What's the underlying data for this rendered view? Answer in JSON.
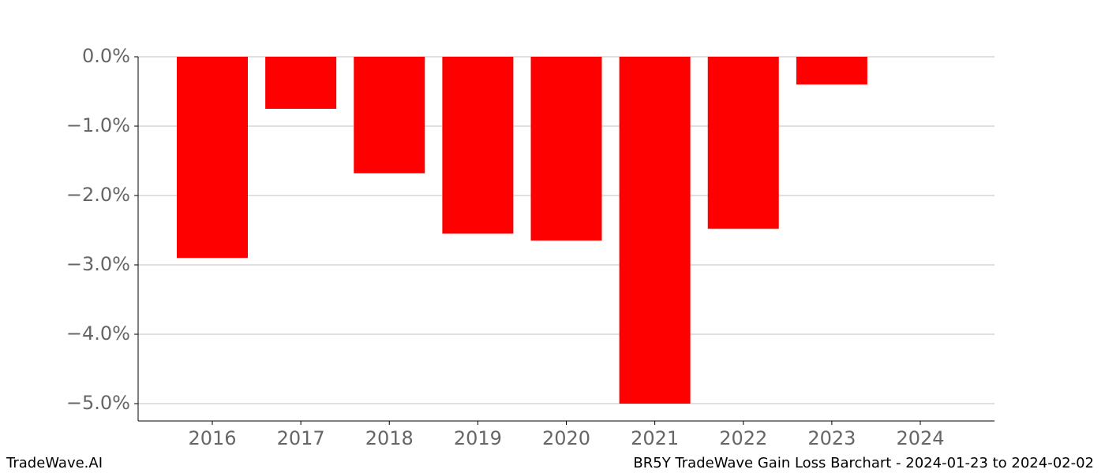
{
  "chart_data": {
    "type": "bar",
    "categories": [
      "2016",
      "2017",
      "2018",
      "2019",
      "2020",
      "2021",
      "2022",
      "2023",
      "2024"
    ],
    "values": [
      -2.9,
      -0.75,
      -1.68,
      -2.55,
      -2.65,
      -5.0,
      -2.48,
      -0.4,
      null
    ],
    "color": "#ff0000",
    "ylim": [
      -5.25,
      0
    ],
    "yticks": [
      {
        "value": 0,
        "label": "0.0%"
      },
      {
        "value": -1,
        "label": "−1.0%"
      },
      {
        "value": -2,
        "label": "−2.0%"
      },
      {
        "value": -3,
        "label": "−3.0%"
      },
      {
        "value": -4,
        "label": "−4.0%"
      },
      {
        "value": -5,
        "label": "−5.0%"
      }
    ],
    "grid": true
  },
  "footer": {
    "left": "TradeWave.AI",
    "right": "BR5Y TradeWave Gain Loss Barchart - 2024-01-23 to 2024-02-02"
  }
}
